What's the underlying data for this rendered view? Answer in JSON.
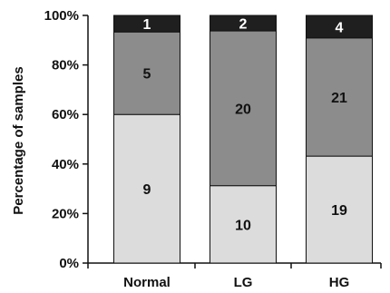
{
  "chart_data": {
    "type": "bar",
    "stacked": true,
    "normalized": true,
    "ylabel": "Percentage of samples",
    "xlabel": "",
    "ylim": [
      0,
      100
    ],
    "yticks": [
      "0%",
      "20%",
      "40%",
      "60%",
      "80%",
      "100%"
    ],
    "categories": [
      "Normal",
      "LG",
      "HG"
    ],
    "series": [
      {
        "values": [
          9,
          10,
          19
        ],
        "color": "#dcdcdc",
        "label_color": "#111111"
      },
      {
        "values": [
          5,
          20,
          21
        ],
        "color": "#8c8c8c",
        "label_color": "#111111"
      },
      {
        "values": [
          1,
          2,
          4
        ],
        "color": "#1f1f1f",
        "label_color": "#ffffff"
      }
    ],
    "grid": false,
    "legend": "none"
  }
}
